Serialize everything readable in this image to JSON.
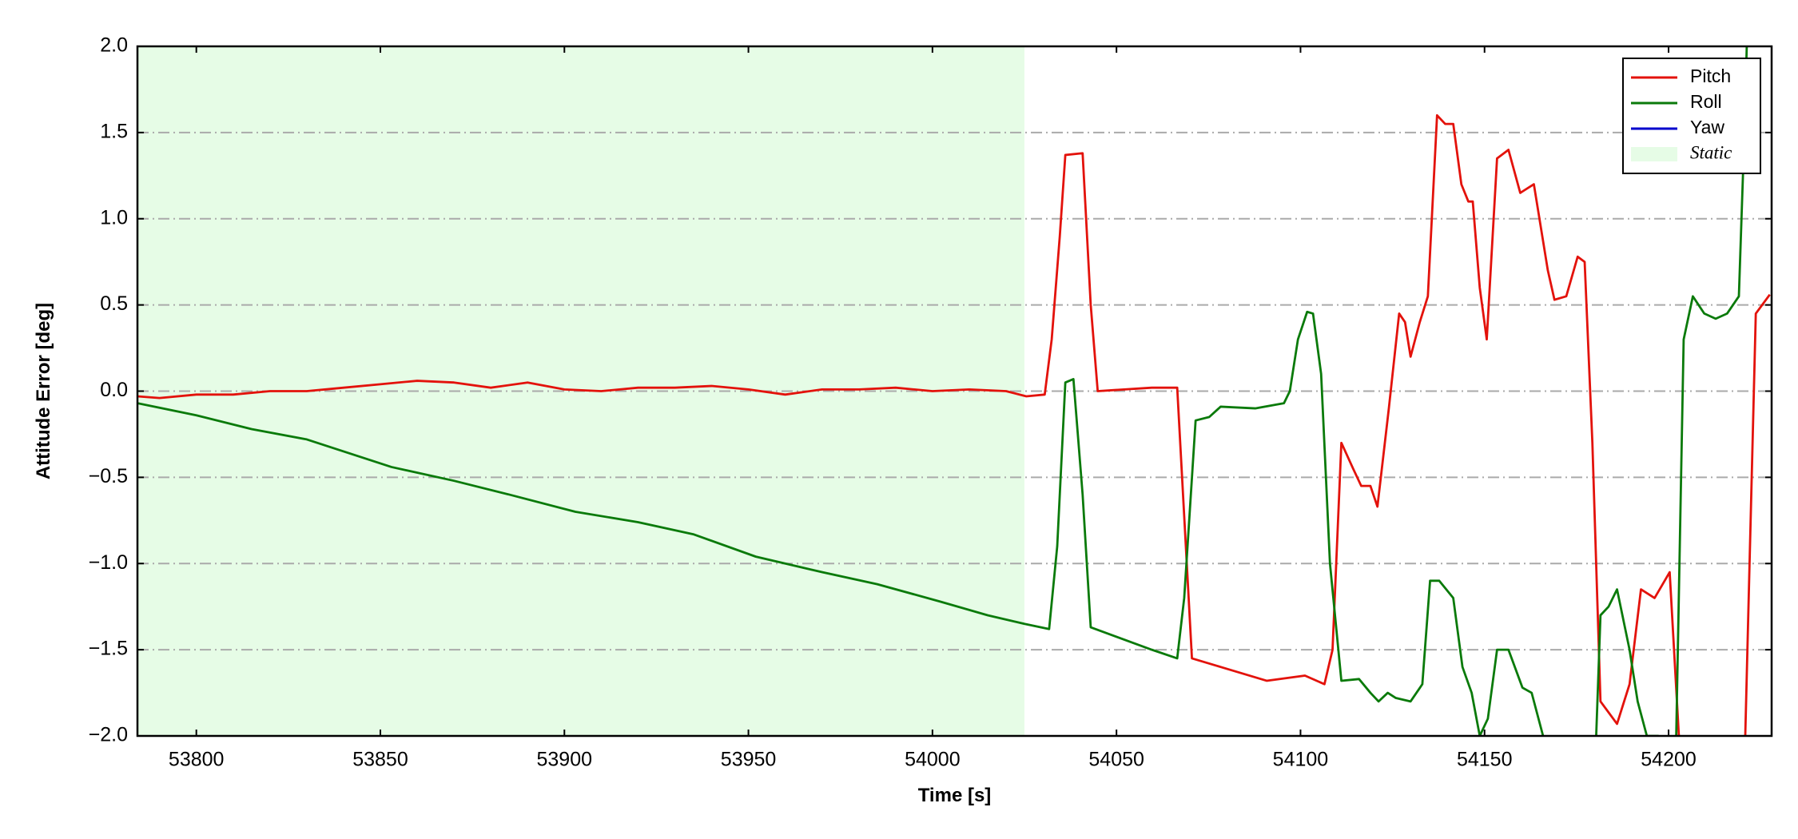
{
  "chart_data": {
    "type": "line",
    "xlabel": "Time [s]",
    "ylabel": "Attitude Error [deg]",
    "xlim": [
      53784,
      54228
    ],
    "ylim": [
      -2,
      2
    ],
    "xticks": [
      53800,
      53850,
      53900,
      53950,
      54000,
      54050,
      54100,
      54150,
      54200
    ],
    "yticks": [
      {
        "value": -2,
        "label": "−2.0"
      },
      {
        "value": -1.5,
        "label": "−1.5"
      },
      {
        "value": -1,
        "label": "−1.0"
      },
      {
        "value": -0.5,
        "label": "−0.5"
      },
      {
        "value": 0,
        "label": "0.0"
      },
      {
        "value": 0.5,
        "label": "0.5"
      },
      {
        "value": 1,
        "label": "1.0"
      },
      {
        "value": 1.5,
        "label": "1.5"
      },
      {
        "value": 2,
        "label": "2.0"
      }
    ],
    "grid": "y",
    "legend": "upper right",
    "spans": [
      {
        "label": "Static",
        "start": 53784,
        "end": 54025,
        "color": "#e6fce6"
      }
    ],
    "series": [
      {
        "name": "Pitch",
        "color": "#e3120b",
        "x": [
          53784,
          53790,
          53800,
          53810,
          53820,
          53830,
          53840,
          53850,
          53860,
          53870,
          53880,
          53890,
          53900,
          53910,
          53920,
          53930,
          53940,
          53950,
          53960,
          53970,
          53980,
          53990,
          54000,
          54010,
          54020,
          54025.5,
          54030.5,
          54032.4,
          54034.6,
          54036.1,
          54040.8,
          54043,
          54044.9,
          54059.6,
          54066.5,
          54070.5,
          54078.3,
          54090.8,
          54101.2,
          54106.5,
          54108.7,
          54111.1,
          54114.3,
          54116.5,
          54119,
          54120.9,
          54124,
          54126.8,
          54128.4,
          54129.9,
          54132.4,
          54134.6,
          54137.1,
          54139.3,
          54141.5,
          54143.7,
          54145.6,
          54146.8,
          54148.7,
          54150.6,
          54153.4,
          54156.5,
          54159.7,
          54163.4,
          54167.2,
          54169,
          54172.2,
          54175.3,
          54177.2,
          54179.3,
          54181.5,
          54186,
          54189.4,
          54192.5,
          54196.2,
          54200.3,
          54202.8,
          54203.5,
          54220.6,
          54223.7,
          54227.5
        ],
        "values": [
          -0.03,
          -0.04,
          -0.02,
          -0.02,
          0.0,
          0.0,
          0.02,
          0.04,
          0.06,
          0.05,
          0.02,
          0.05,
          0.01,
          0.0,
          0.02,
          0.02,
          0.03,
          0.01,
          -0.02,
          0.01,
          0.01,
          0.02,
          0.0,
          0.01,
          0.0,
          -0.03,
          -0.02,
          0.3,
          0.9,
          1.37,
          1.38,
          0.5,
          0.0,
          0.02,
          0.02,
          -1.55,
          -1.6,
          -1.68,
          -1.65,
          -1.7,
          -1.5,
          -0.3,
          -0.45,
          -0.55,
          -0.55,
          -0.67,
          -0.1,
          0.45,
          0.4,
          0.2,
          0.4,
          0.55,
          1.6,
          1.55,
          1.55,
          1.2,
          1.1,
          1.1,
          0.6,
          0.3,
          1.35,
          1.4,
          1.15,
          1.2,
          0.7,
          0.53,
          0.55,
          0.78,
          0.75,
          -0.3,
          -1.8,
          -1.93,
          -1.7,
          -1.15,
          -1.2,
          -1.05,
          -2.0,
          -2.2,
          -2.2,
          0.45,
          0.56
        ]
      },
      {
        "name": "Roll",
        "color": "#0a7a0a",
        "x": [
          53784,
          53800,
          53815,
          53830,
          53853,
          53870,
          53885,
          53903,
          53920,
          53935,
          53952,
          53970,
          53985,
          54002,
          54015,
          54025,
          54031.7,
          54033.9,
          54036.1,
          54038.3,
          54040.8,
          54043,
          54059.6,
          54066.5,
          54068.4,
          54071.5,
          54075.2,
          54078.3,
          54087.7,
          54095.5,
          54097.1,
          54099.3,
          54101.8,
          54103.4,
          54105.6,
          54108,
          54111.1,
          54115.9,
          54119,
          54121.2,
          54123.7,
          54125.9,
          54129.9,
          54133.1,
          54135.2,
          54137.7,
          54141.5,
          54144,
          54146.5,
          54148.7,
          54150.9,
          54153.4,
          54156.5,
          54160.3,
          54162.8,
          54165.9,
          54166.5,
          54180,
          54181.5,
          54183.7,
          54186,
          54189.4,
          54191.6,
          54194.1,
          54197.2,
          54198.1,
          54201.9,
          54204.1,
          54206.6,
          54209.7,
          54212.8,
          54215.9,
          54219.1,
          54220.6,
          54221.5
        ],
        "values": [
          -0.07,
          -0.14,
          -0.22,
          -0.28,
          -0.44,
          -0.52,
          -0.6,
          -0.7,
          -0.76,
          -0.83,
          -0.96,
          -1.05,
          -1.12,
          -1.22,
          -1.3,
          -1.35,
          -1.38,
          -0.9,
          0.05,
          0.07,
          -0.6,
          -1.37,
          -1.5,
          -1.55,
          -1.2,
          -0.17,
          -0.15,
          -0.09,
          -0.1,
          -0.07,
          0.0,
          0.3,
          0.46,
          0.45,
          0.1,
          -1.0,
          -1.68,
          -1.67,
          -1.75,
          -1.8,
          -1.75,
          -1.78,
          -1.8,
          -1.7,
          -1.1,
          -1.1,
          -1.2,
          -1.6,
          -1.75,
          -2.0,
          -1.9,
          -1.5,
          -1.5,
          -1.72,
          -1.75,
          -2.0,
          -2.2,
          -2.2,
          -1.3,
          -1.25,
          -1.15,
          -1.5,
          -1.8,
          -2.0,
          -2.0,
          -2.2,
          -2.2,
          0.3,
          0.55,
          0.45,
          0.42,
          0.45,
          0.55,
          1.5,
          2.2
        ]
      },
      {
        "name": "Yaw",
        "color": "#0000cc",
        "x": [],
        "values": []
      }
    ]
  }
}
